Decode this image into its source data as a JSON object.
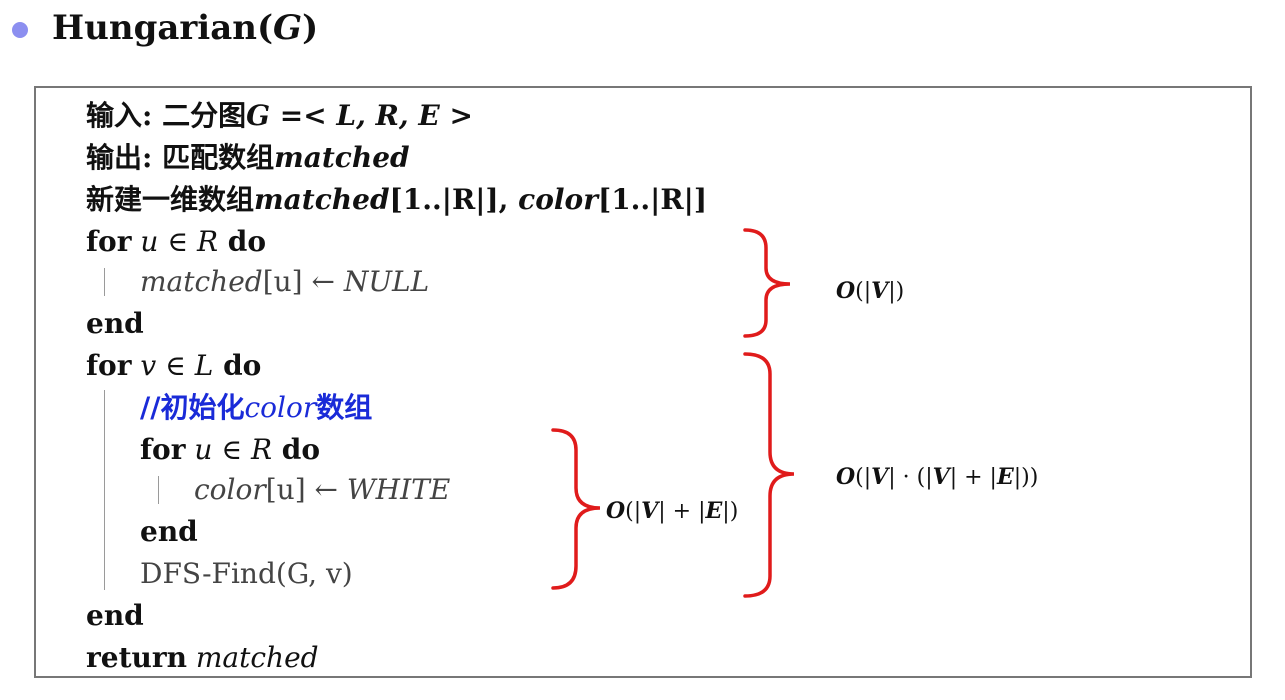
{
  "title": {
    "name": "Hungarian",
    "open": "(",
    "param": "G",
    "close": ")"
  },
  "algorithm": {
    "input": {
      "label": "输入: 二分图",
      "formula": "G =< L, R, E >"
    },
    "output": {
      "label": "输出: 匹配数组",
      "var": "matched"
    },
    "init": {
      "label": "新建一维数组",
      "arr1": "matched",
      "range": "[1..|R|], ",
      "arr2": "color",
      "range2": "[1..|R|]"
    },
    "loop1": {
      "for": "for",
      "var": "u",
      "in": " ∈ ",
      "set": "R",
      "do": " do"
    },
    "loop1_body": {
      "var": "matched",
      "idx": "[u]",
      "arrow": " ← ",
      "val": "NULL"
    },
    "loop1_end": "end",
    "loop2": {
      "for": "for",
      "var": "v",
      "in": " ∈ ",
      "set": "L",
      "do": " do"
    },
    "comment": {
      "prefix": "//初始化",
      "var": "color",
      "suffix": "数组"
    },
    "inner_loop": {
      "for": "for",
      "var": "u",
      "in": " ∈ ",
      "set": "R",
      "do": " do"
    },
    "inner_body": {
      "var": "color",
      "idx": "[u]",
      "arrow": " ← ",
      "val": "WHITE"
    },
    "inner_end": "end",
    "call": {
      "name": "DFS-Find",
      "args": "(G, v)"
    },
    "loop2_end": "end",
    "ret": {
      "kw": "return",
      "var": "matched"
    }
  },
  "annotations": {
    "init_cost": {
      "o": "O",
      "open": "(|",
      "v": "V",
      "close": "|)"
    },
    "inner_cost": {
      "o": "O",
      "a": "(|",
      "v": "V",
      "b": "| + |",
      "e": "E",
      "c": "|)"
    },
    "outer_cost": {
      "o": "O",
      "a": "(|",
      "v1": "V",
      "b": "| · (|",
      "v2": "V",
      "c": "| + |",
      "e": "E",
      "d": "|))"
    }
  },
  "colors": {
    "bracket": "#e01b1b",
    "comment": "#1a2bd8",
    "bullet": "#8c8ff0"
  }
}
